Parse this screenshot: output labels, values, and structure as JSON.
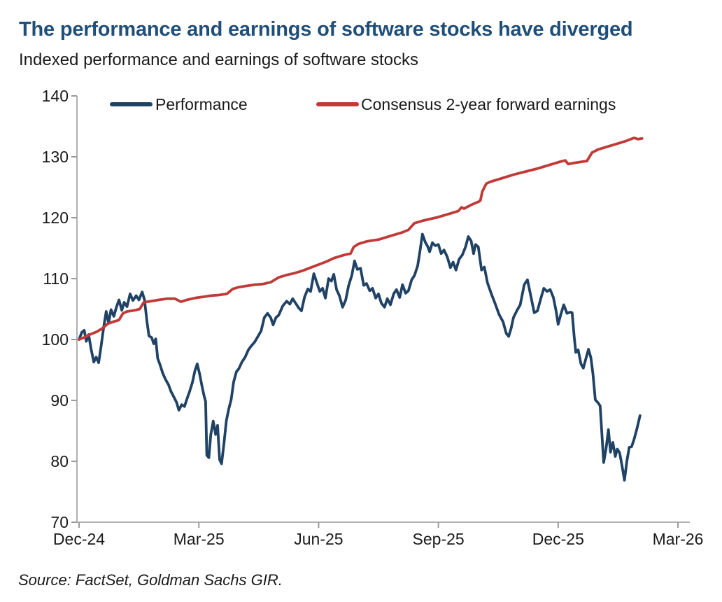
{
  "page": {
    "title": "The performance and earnings of software stocks have diverged",
    "subtitle": "Indexed performance and earnings of software stocks",
    "source": "Source: FactSet, Goldman Sachs GIR."
  },
  "colors": {
    "title_blue": "#1f4e79",
    "performance_line": "#1f4265",
    "earnings_line": "#c13a38",
    "axis_gray": "#b0b0b0",
    "tick_gray": "#9a9a9a",
    "text_black": "#1a1a1a"
  },
  "chart_data": {
    "type": "line",
    "title": "The performance and earnings of software stocks have diverged",
    "subtitle": "Indexed performance and earnings of software stocks",
    "x_unit": "months since Dec-24",
    "xlim": [
      0,
      15.3
    ],
    "ylim": [
      70,
      140
    ],
    "grid": false,
    "legend_position": "top-inside",
    "y_ticks": [
      70,
      80,
      90,
      100,
      110,
      120,
      130,
      140
    ],
    "x_ticks": [
      {
        "m": 0,
        "label": "Dec-24"
      },
      {
        "m": 3,
        "label": "Mar-25"
      },
      {
        "m": 6,
        "label": "Jun-25"
      },
      {
        "m": 9,
        "label": "Sep-25"
      },
      {
        "m": 12,
        "label": "Dec-25"
      },
      {
        "m": 15,
        "label": "Mar-26"
      }
    ],
    "series": [
      {
        "name": "Performance",
        "color": "#1f4265",
        "points": [
          [
            0,
            100
          ],
          [
            0.07,
            101.2
          ],
          [
            0.13,
            101.5
          ],
          [
            0.18,
            99.7
          ],
          [
            0.24,
            100.8
          ],
          [
            0.3,
            98.5
          ],
          [
            0.37,
            96.3
          ],
          [
            0.43,
            97.1
          ],
          [
            0.49,
            96.2
          ],
          [
            0.55,
            98.8
          ],
          [
            0.62,
            102.2
          ],
          [
            0.68,
            104.6
          ],
          [
            0.74,
            102.7
          ],
          [
            0.8,
            104.9
          ],
          [
            0.87,
            103.8
          ],
          [
            0.93,
            105.2
          ],
          [
            1,
            106.5
          ],
          [
            1.07,
            104.8
          ],
          [
            1.13,
            106.1
          ],
          [
            1.2,
            105.4
          ],
          [
            1.28,
            107.5
          ],
          [
            1.35,
            106.4
          ],
          [
            1.43,
            107.2
          ],
          [
            1.5,
            106.5
          ],
          [
            1.58,
            107.8
          ],
          [
            1.64,
            106.5
          ],
          [
            1.7,
            103
          ],
          [
            1.75,
            100.6
          ],
          [
            1.82,
            100.3
          ],
          [
            1.87,
            99.3
          ],
          [
            1.92,
            100.1
          ],
          [
            1.97,
            96.9
          ],
          [
            2.03,
            95.8
          ],
          [
            2.1,
            94.4
          ],
          [
            2.17,
            93.4
          ],
          [
            2.24,
            92.6
          ],
          [
            2.3,
            91.5
          ],
          [
            2.37,
            90.6
          ],
          [
            2.44,
            89.7
          ],
          [
            2.5,
            88.4
          ],
          [
            2.57,
            89.3
          ],
          [
            2.64,
            89
          ],
          [
            2.7,
            90.2
          ],
          [
            2.77,
            91.5
          ],
          [
            2.84,
            93
          ],
          [
            2.9,
            94.8
          ],
          [
            2.96,
            96
          ],
          [
            3.02,
            94.3
          ],
          [
            3.08,
            92.3
          ],
          [
            3.13,
            90.8
          ],
          [
            3.17,
            89.8
          ],
          [
            3.2,
            81
          ],
          [
            3.25,
            80.6
          ],
          [
            3.3,
            84.4
          ],
          [
            3.36,
            86.6
          ],
          [
            3.42,
            84.4
          ],
          [
            3.47,
            85.9
          ],
          [
            3.52,
            80.3
          ],
          [
            3.57,
            79.6
          ],
          [
            3.63,
            83
          ],
          [
            3.69,
            86.7
          ],
          [
            3.75,
            88.6
          ],
          [
            3.81,
            90.1
          ],
          [
            3.87,
            93
          ],
          [
            3.94,
            94.7
          ],
          [
            4,
            95.2
          ],
          [
            4.08,
            96.3
          ],
          [
            4.16,
            97.1
          ],
          [
            4.24,
            98.3
          ],
          [
            4.32,
            99
          ],
          [
            4.4,
            99.6
          ],
          [
            4.48,
            100.5
          ],
          [
            4.56,
            101.4
          ],
          [
            4.64,
            103.6
          ],
          [
            4.72,
            104.3
          ],
          [
            4.8,
            103.6
          ],
          [
            4.86,
            102.4
          ],
          [
            4.93,
            103.6
          ],
          [
            5,
            104
          ],
          [
            5.1,
            105.5
          ],
          [
            5.2,
            106.3
          ],
          [
            5.28,
            105.8
          ],
          [
            5.35,
            106.7
          ],
          [
            5.43,
            105.9
          ],
          [
            5.5,
            105.2
          ],
          [
            5.57,
            104.7
          ],
          [
            5.65,
            107
          ],
          [
            5.73,
            108.3
          ],
          [
            5.8,
            107.9
          ],
          [
            5.88,
            110.8
          ],
          [
            5.95,
            109.4
          ],
          [
            6.03,
            107.9
          ],
          [
            6.1,
            108.4
          ],
          [
            6.17,
            106.8
          ],
          [
            6.25,
            110
          ],
          [
            6.32,
            109.6
          ],
          [
            6.38,
            110.7
          ],
          [
            6.45,
            108.2
          ],
          [
            6.52,
            107.2
          ],
          [
            6.6,
            105.3
          ],
          [
            6.68,
            106.5
          ],
          [
            6.75,
            108.8
          ],
          [
            6.83,
            110.5
          ],
          [
            6.9,
            112.9
          ],
          [
            6.97,
            111.5
          ],
          [
            7.05,
            111.7
          ],
          [
            7.13,
            108.9
          ],
          [
            7.2,
            109.2
          ],
          [
            7.28,
            108
          ],
          [
            7.35,
            108.4
          ],
          [
            7.43,
            106.8
          ],
          [
            7.5,
            107.5
          ],
          [
            7.57,
            106
          ],
          [
            7.65,
            105.3
          ],
          [
            7.72,
            106.7
          ],
          [
            7.8,
            105.7
          ],
          [
            7.88,
            107.5
          ],
          [
            7.95,
            108.2
          ],
          [
            8.03,
            106.9
          ],
          [
            8.1,
            109
          ],
          [
            8.18,
            107.6
          ],
          [
            8.25,
            108
          ],
          [
            8.33,
            109.8
          ],
          [
            8.4,
            110.5
          ],
          [
            8.48,
            112.1
          ],
          [
            8.54,
            114.6
          ],
          [
            8.6,
            117.3
          ],
          [
            8.67,
            116
          ],
          [
            8.73,
            115.3
          ],
          [
            8.78,
            114.4
          ],
          [
            8.85,
            115.9
          ],
          [
            8.92,
            115.4
          ],
          [
            9,
            115.6
          ],
          [
            9.07,
            114.1
          ],
          [
            9.14,
            114.7
          ],
          [
            9.22,
            113.6
          ],
          [
            9.3,
            111.8
          ],
          [
            9.37,
            112.7
          ],
          [
            9.44,
            111.4
          ],
          [
            9.52,
            113.2
          ],
          [
            9.6,
            113.9
          ],
          [
            9.68,
            115.2
          ],
          [
            9.75,
            116.9
          ],
          [
            9.82,
            116.2
          ],
          [
            9.88,
            114.1
          ],
          [
            9.93,
            115.6
          ],
          [
            10,
            115.2
          ],
          [
            10.08,
            111.4
          ],
          [
            10.15,
            111.9
          ],
          [
            10.23,
            109.3
          ],
          [
            10.32,
            107.6
          ],
          [
            10.42,
            105.9
          ],
          [
            10.52,
            104.1
          ],
          [
            10.62,
            102.9
          ],
          [
            10.7,
            101
          ],
          [
            10.76,
            100.5
          ],
          [
            10.82,
            101.8
          ],
          [
            10.88,
            103.6
          ],
          [
            10.97,
            104.8
          ],
          [
            11.05,
            105.7
          ],
          [
            11.15,
            109
          ],
          [
            11.23,
            109.8
          ],
          [
            11.32,
            107
          ],
          [
            11.4,
            104.4
          ],
          [
            11.48,
            104.7
          ],
          [
            11.56,
            106.6
          ],
          [
            11.64,
            108.4
          ],
          [
            11.72,
            107.9
          ],
          [
            11.8,
            108.2
          ],
          [
            11.88,
            106.9
          ],
          [
            11.95,
            104.6
          ],
          [
            12,
            102.5
          ],
          [
            12.07,
            104.2
          ],
          [
            12.14,
            105.7
          ],
          [
            12.22,
            104.3
          ],
          [
            12.3,
            104.5
          ],
          [
            12.35,
            104.4
          ],
          [
            12.4,
            100.5
          ],
          [
            12.44,
            97.9
          ],
          [
            12.5,
            98.3
          ],
          [
            12.57,
            96
          ],
          [
            12.63,
            95.3
          ],
          [
            12.7,
            97
          ],
          [
            12.76,
            98.4
          ],
          [
            12.82,
            97
          ],
          [
            12.87,
            94.4
          ],
          [
            12.93,
            90.1
          ],
          [
            13,
            89.6
          ],
          [
            13.05,
            89.1
          ],
          [
            13.1,
            84
          ],
          [
            13.14,
            79.8
          ],
          [
            13.2,
            82.1
          ],
          [
            13.26,
            85.2
          ],
          [
            13.31,
            81.5
          ],
          [
            13.37,
            83.1
          ],
          [
            13.43,
            80.8
          ],
          [
            13.48,
            82
          ],
          [
            13.54,
            81.4
          ],
          [
            13.6,
            79.2
          ],
          [
            13.66,
            76.9
          ],
          [
            13.72,
            80
          ],
          [
            13.78,
            82.3
          ],
          [
            13.84,
            82.4
          ],
          [
            13.9,
            83.6
          ],
          [
            13.97,
            85.3
          ],
          [
            14.05,
            87.5
          ]
        ]
      },
      {
        "name": "Consensus 2-year forward earnings",
        "color": "#c13a38",
        "points": [
          [
            0,
            100
          ],
          [
            0.15,
            100.4
          ],
          [
            0.3,
            100.9
          ],
          [
            0.45,
            101.3
          ],
          [
            0.6,
            101.9
          ],
          [
            0.72,
            102.6
          ],
          [
            0.85,
            102.9
          ],
          [
            1,
            103.2
          ],
          [
            1.1,
            104.3
          ],
          [
            1.2,
            104.6
          ],
          [
            1.4,
            104.8
          ],
          [
            1.52,
            105
          ],
          [
            1.62,
            106.1
          ],
          [
            1.8,
            106.3
          ],
          [
            2,
            106.5
          ],
          [
            2.2,
            106.7
          ],
          [
            2.4,
            106.7
          ],
          [
            2.55,
            106.2
          ],
          [
            2.7,
            106.5
          ],
          [
            2.9,
            106.8
          ],
          [
            3.1,
            107
          ],
          [
            3.3,
            107.2
          ],
          [
            3.5,
            107.3
          ],
          [
            3.7,
            107.5
          ],
          [
            3.85,
            108.3
          ],
          [
            4,
            108.6
          ],
          [
            4.2,
            108.8
          ],
          [
            4.4,
            109
          ],
          [
            4.6,
            109.1
          ],
          [
            4.8,
            109.4
          ],
          [
            5,
            110.2
          ],
          [
            5.2,
            110.6
          ],
          [
            5.4,
            110.9
          ],
          [
            5.6,
            111.3
          ],
          [
            5.8,
            111.8
          ],
          [
            6,
            112.3
          ],
          [
            6.2,
            112.8
          ],
          [
            6.4,
            113.4
          ],
          [
            6.65,
            113.9
          ],
          [
            6.8,
            114.1
          ],
          [
            6.88,
            115.2
          ],
          [
            7,
            115.7
          ],
          [
            7.2,
            116.1
          ],
          [
            7.5,
            116.4
          ],
          [
            7.8,
            117
          ],
          [
            8.1,
            117.6
          ],
          [
            8.25,
            118
          ],
          [
            8.4,
            119.1
          ],
          [
            8.6,
            119.5
          ],
          [
            9,
            120.1
          ],
          [
            9.3,
            120.7
          ],
          [
            9.5,
            121.1
          ],
          [
            9.58,
            121.7
          ],
          [
            9.64,
            121.5
          ],
          [
            9.85,
            122.2
          ],
          [
            10,
            122.6
          ],
          [
            10.05,
            122.8
          ],
          [
            10.1,
            124.3
          ],
          [
            10.2,
            125.6
          ],
          [
            10.3,
            125.9
          ],
          [
            10.6,
            126.5
          ],
          [
            10.9,
            127.1
          ],
          [
            11.2,
            127.6
          ],
          [
            11.5,
            128.1
          ],
          [
            11.8,
            128.7
          ],
          [
            12.05,
            129.2
          ],
          [
            12.18,
            129.4
          ],
          [
            12.25,
            128.8
          ],
          [
            12.4,
            129
          ],
          [
            12.6,
            129.2
          ],
          [
            12.72,
            129.3
          ],
          [
            12.85,
            130.7
          ],
          [
            13,
            131.2
          ],
          [
            13.2,
            131.6
          ],
          [
            13.5,
            132.2
          ],
          [
            13.7,
            132.6
          ],
          [
            13.9,
            133.1
          ],
          [
            14,
            132.9
          ],
          [
            14.1,
            133
          ]
        ]
      }
    ]
  }
}
